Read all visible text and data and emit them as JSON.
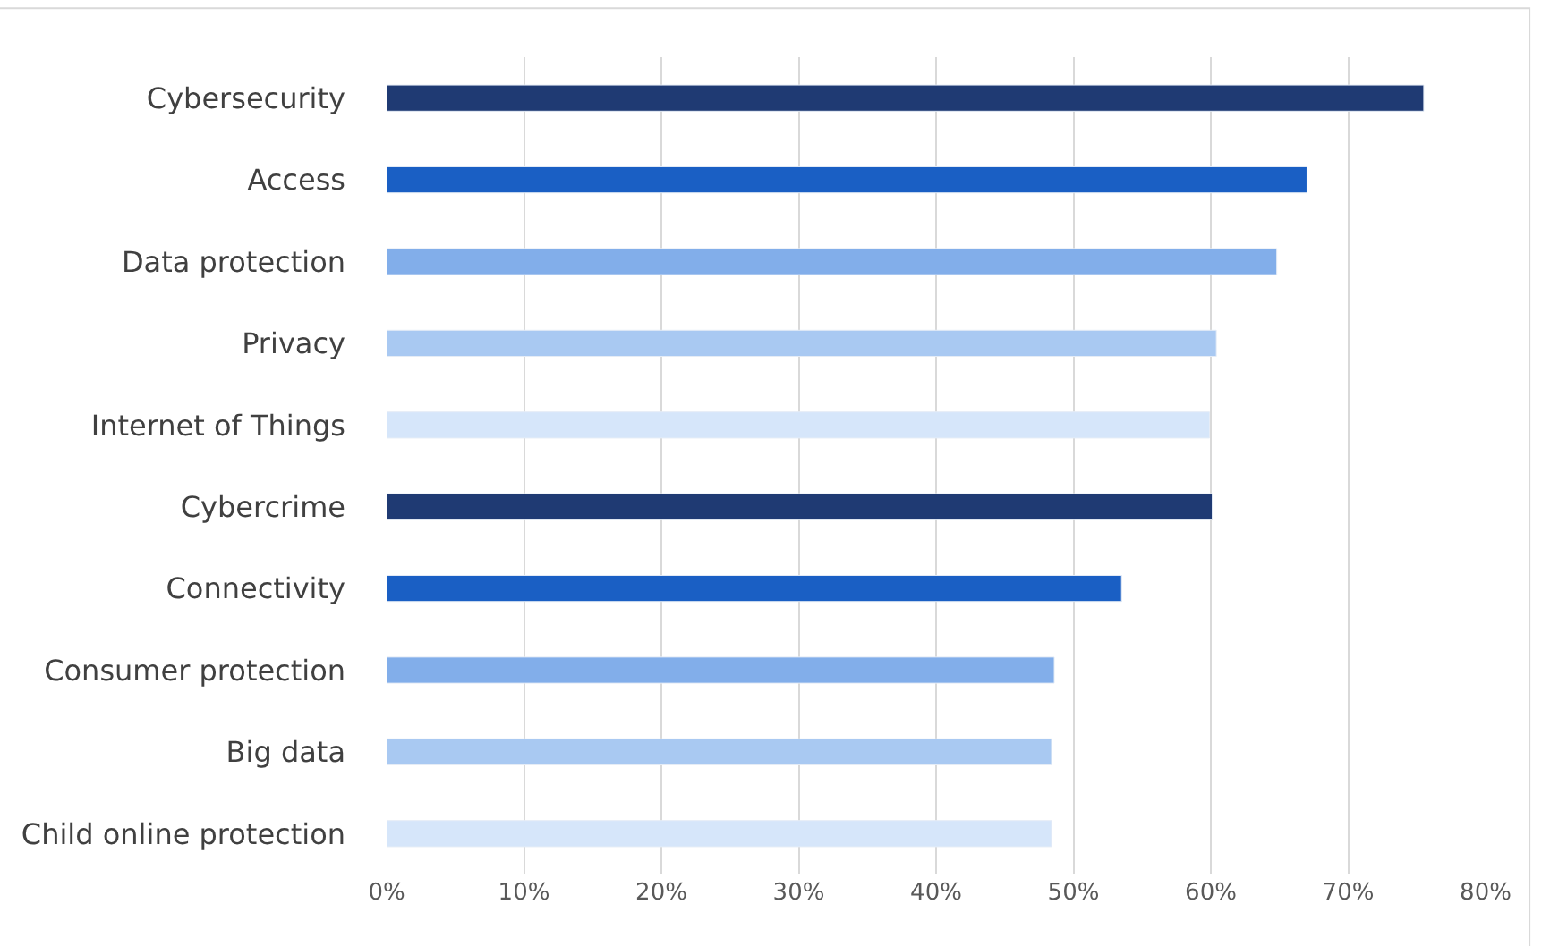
{
  "chart_data": {
    "type": "bar",
    "orientation": "horizontal",
    "categories": [
      "Cybersecurity",
      "Access",
      "Data protection",
      "Privacy",
      "Internet of Things",
      "Cybercrime",
      "Connectivity",
      "Consumer protection",
      "Big data",
      "Child online protection"
    ],
    "values": [
      75.5,
      67,
      64.8,
      60.4,
      59.9,
      60.1,
      53.5,
      48.6,
      48.4,
      48.4
    ],
    "colors": [
      "#1f3a73",
      "#1a5fc4",
      "#82aeea",
      "#a9c9f2",
      "#d6e6fa",
      "#1f3a73",
      "#1a5fc4",
      "#82aeea",
      "#a9c9f2",
      "#d6e6fa"
    ],
    "xlim": [
      0,
      80
    ],
    "xticks": [
      {
        "value": 0,
        "label": "0%"
      },
      {
        "value": 10,
        "label": "10%"
      },
      {
        "value": 20,
        "label": "20%"
      },
      {
        "value": 30,
        "label": "30%"
      },
      {
        "value": 40,
        "label": "40%"
      },
      {
        "value": 50,
        "label": "50%"
      },
      {
        "value": 60,
        "label": "60%"
      },
      {
        "value": 70,
        "label": "70%"
      },
      {
        "value": 80,
        "label": "80%"
      }
    ],
    "grid": "x"
  }
}
